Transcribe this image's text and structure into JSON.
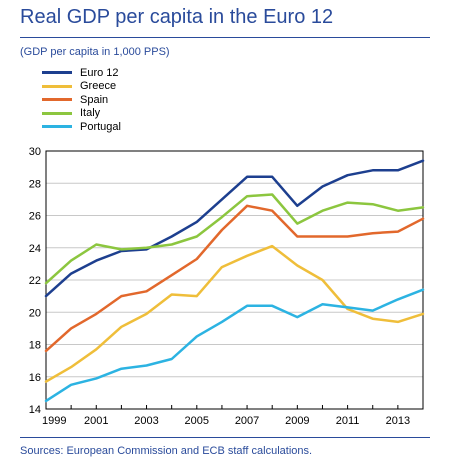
{
  "header": {
    "title": "Real GDP per capita in the Euro 12",
    "subtitle": "(GDP per capita in 1,000 PPS)"
  },
  "footer": {
    "source": "Sources: European Commission and ECB staff calculations."
  },
  "chart_data": {
    "type": "line",
    "title": "Real GDP per capita in the Euro 12",
    "subtitle": "(GDP per capita in 1,000 PPS)",
    "xlabel": "",
    "ylabel": "",
    "x": [
      1999,
      2000,
      2001,
      2002,
      2003,
      2004,
      2005,
      2006,
      2007,
      2008,
      2009,
      2010,
      2011,
      2012,
      2013,
      2014
    ],
    "xlim": [
      1999,
      2014
    ],
    "ylim": [
      14,
      30
    ],
    "x_ticks": [
      "1999",
      "2001",
      "2003",
      "2005",
      "2007",
      "2009",
      "2011",
      "2013"
    ],
    "y_ticks": [
      "14",
      "16",
      "18",
      "20",
      "22",
      "24",
      "26",
      "28",
      "30"
    ],
    "grid": "horizontal",
    "legend_position": "top-left",
    "series": [
      {
        "name": "Euro 12",
        "color": "#1d3f8f",
        "values": [
          21.0,
          22.4,
          23.2,
          23.8,
          23.9,
          24.7,
          25.6,
          27.0,
          28.4,
          28.4,
          26.6,
          27.8,
          28.5,
          28.8,
          28.8,
          29.4
        ]
      },
      {
        "name": "Greece",
        "color": "#efbe3a",
        "values": [
          15.7,
          16.6,
          17.7,
          19.1,
          19.9,
          21.1,
          21.0,
          22.8,
          23.5,
          24.1,
          22.9,
          22.0,
          20.2,
          19.6,
          19.4,
          19.9
        ]
      },
      {
        "name": "Spain",
        "color": "#e2682c",
        "values": [
          17.6,
          19.0,
          19.9,
          21.0,
          21.3,
          22.3,
          23.3,
          25.1,
          26.6,
          26.3,
          24.7,
          24.7,
          24.7,
          24.9,
          25.0,
          25.8
        ]
      },
      {
        "name": "Italy",
        "color": "#8cc63f",
        "values": [
          21.8,
          23.2,
          24.2,
          23.9,
          24.0,
          24.2,
          24.7,
          25.9,
          27.2,
          27.3,
          25.5,
          26.3,
          26.8,
          26.7,
          26.3,
          26.5
        ]
      },
      {
        "name": "Portugal",
        "color": "#2cb3e2",
        "values": [
          14.5,
          15.5,
          15.9,
          16.5,
          16.7,
          17.1,
          18.5,
          19.4,
          20.4,
          20.4,
          19.7,
          20.5,
          20.3,
          20.1,
          20.8,
          21.4
        ]
      }
    ]
  }
}
